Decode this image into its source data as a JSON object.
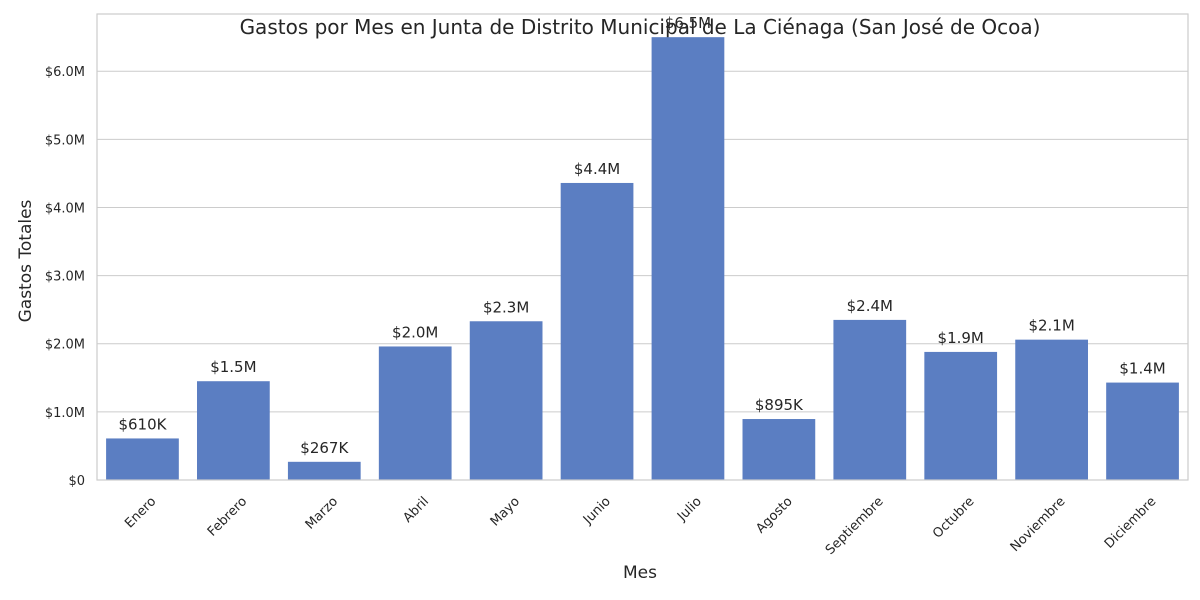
{
  "chart_data": {
    "type": "bar",
    "title": "Gastos por Mes en Junta de Distrito Municipal de La Ciénaga (San José de Ocoa)",
    "xlabel": "Mes",
    "ylabel": "Gastos Totales",
    "categories": [
      "Enero",
      "Febrero",
      "Marzo",
      "Abril",
      "Mayo",
      "Junio",
      "Julio",
      "Agosto",
      "Septiembre",
      "Octubre",
      "Noviembre",
      "Diciembre"
    ],
    "values": [
      610000,
      1450000,
      267000,
      1960000,
      2330000,
      4360000,
      6500000,
      895000,
      2350000,
      1880000,
      2060000,
      1430000
    ],
    "data_labels": [
      "$610K",
      "$1.5M",
      "$267K",
      "$2.0M",
      "$2.3M",
      "$4.4M",
      "$6.5M",
      "$895K",
      "$2.4M",
      "$1.9M",
      "$2.1M",
      "$1.4M"
    ],
    "ylim": [
      0,
      6840000
    ],
    "yticks": [
      0,
      1000000,
      2000000,
      3000000,
      4000000,
      5000000,
      6000000
    ],
    "ytick_labels": [
      "$0",
      "$1.0M",
      "$2.0M",
      "$3.0M",
      "$4.0M",
      "$5.0M",
      "$6.0M"
    ],
    "grid": true,
    "bar_color": "#5b7ec2"
  }
}
